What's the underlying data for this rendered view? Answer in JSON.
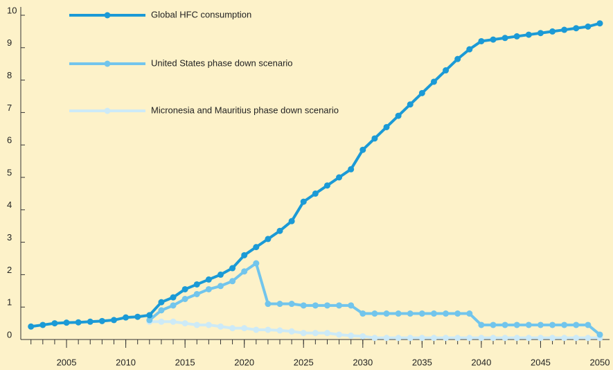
{
  "chart_data": {
    "type": "line",
    "x": [
      2002,
      2003,
      2004,
      2005,
      2006,
      2007,
      2008,
      2009,
      2010,
      2011,
      2012,
      2013,
      2014,
      2015,
      2016,
      2017,
      2018,
      2019,
      2020,
      2021,
      2022,
      2023,
      2024,
      2025,
      2026,
      2027,
      2028,
      2029,
      2030,
      2031,
      2032,
      2033,
      2034,
      2035,
      2036,
      2037,
      2038,
      2039,
      2040,
      2041,
      2042,
      2043,
      2044,
      2045,
      2046,
      2047,
      2048,
      2049,
      2050
    ],
    "series": [
      {
        "name": "Global HFC consumption",
        "color": "#1b9ad6",
        "values": [
          0.4,
          0.45,
          0.5,
          0.52,
          0.53,
          0.55,
          0.57,
          0.6,
          0.68,
          0.7,
          0.75,
          1.15,
          1.3,
          1.55,
          1.7,
          1.85,
          2.0,
          2.2,
          2.6,
          2.85,
          3.1,
          3.35,
          3.65,
          4.25,
          4.5,
          4.75,
          5.0,
          5.25,
          5.85,
          6.2,
          6.55,
          6.9,
          7.25,
          7.6,
          7.95,
          8.3,
          8.65,
          8.95,
          9.2,
          9.25,
          9.3,
          9.35,
          9.4,
          9.45,
          9.5,
          9.55,
          9.6,
          9.65,
          9.75
        ]
      },
      {
        "name": "United States phase down scenario",
        "color": "#72c5ec",
        "values": [
          null,
          null,
          null,
          null,
          null,
          null,
          null,
          null,
          null,
          null,
          0.6,
          0.9,
          1.05,
          1.25,
          1.4,
          1.55,
          1.65,
          1.8,
          2.1,
          2.35,
          1.1,
          1.1,
          1.1,
          1.05,
          1.05,
          1.05,
          1.05,
          1.05,
          0.8,
          0.8,
          0.8,
          0.8,
          0.8,
          0.8,
          0.8,
          0.8,
          0.8,
          0.8,
          0.45,
          0.45,
          0.45,
          0.45,
          0.45,
          0.45,
          0.45,
          0.45,
          0.45,
          0.45,
          0.15
        ]
      },
      {
        "name": "Micronesia and Mauritius phase down scenario",
        "color": "#cdeaf7",
        "values": [
          null,
          null,
          null,
          null,
          null,
          null,
          null,
          null,
          null,
          null,
          0.55,
          0.55,
          0.55,
          0.5,
          0.45,
          0.45,
          0.4,
          0.35,
          0.35,
          0.3,
          0.3,
          0.28,
          0.25,
          0.2,
          0.2,
          0.2,
          0.15,
          0.12,
          0.1,
          0.05,
          0.05,
          0.05,
          0.05,
          0.05,
          0.05,
          0.05,
          0.05,
          0.05,
          0.05,
          0.05,
          0.05,
          0.05,
          0.05,
          0.05,
          0.05,
          0.05,
          0.05,
          0.05,
          0.05
        ]
      }
    ],
    "xlim": [
      2002,
      2050
    ],
    "xticks": [
      2005,
      2010,
      2015,
      2020,
      2025,
      2030,
      2035,
      2040,
      2045,
      2050
    ],
    "ylim": [
      0,
      10
    ],
    "yticks": [
      0,
      1,
      2,
      3,
      4,
      5,
      6,
      7,
      8,
      9,
      10
    ]
  }
}
